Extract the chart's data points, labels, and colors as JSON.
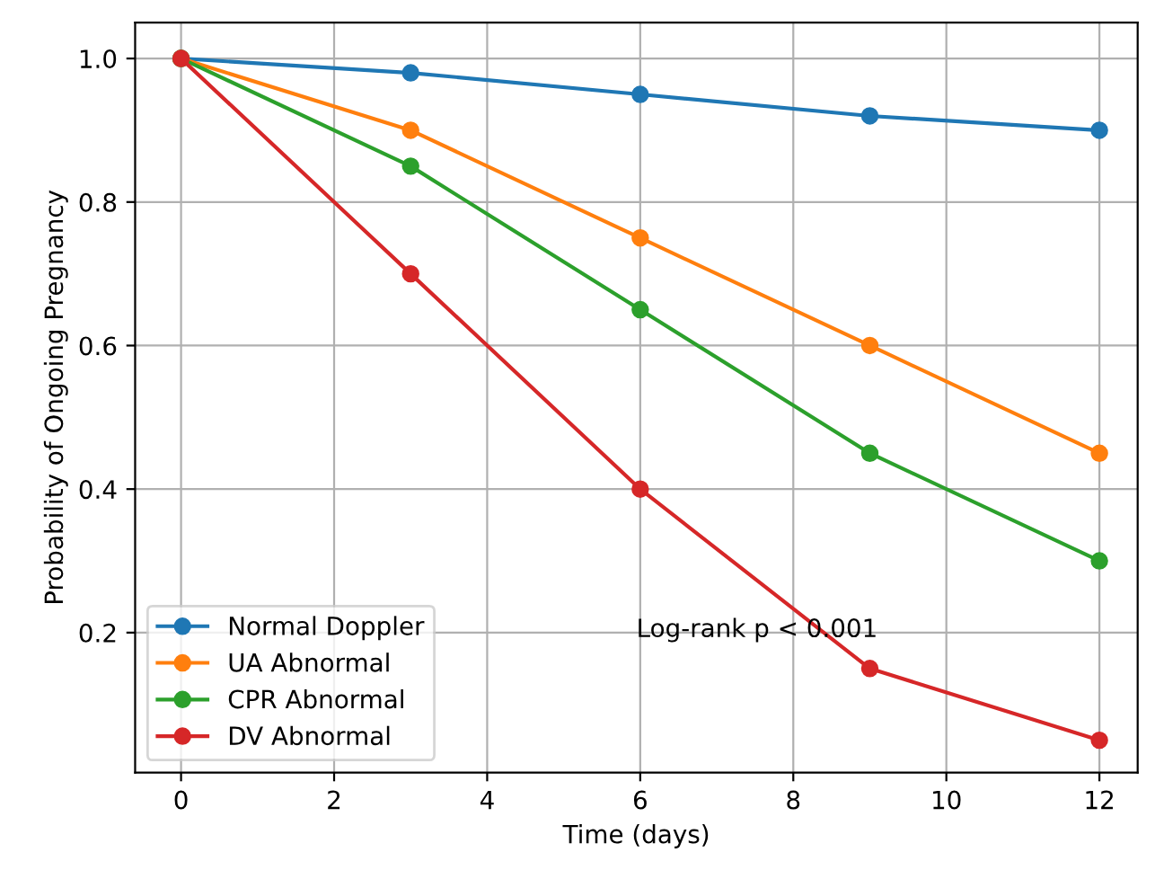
{
  "chart_data": {
    "type": "line",
    "xlabel": "Time (days)",
    "ylabel": "Probability of Ongoing Pregnancy",
    "x": [
      0,
      3,
      6,
      9,
      12
    ],
    "series": [
      {
        "name": "Normal Doppler",
        "color": "#1f77b4",
        "values": [
          1.0,
          0.98,
          0.95,
          0.92,
          0.9
        ]
      },
      {
        "name": "UA Abnormal",
        "color": "#ff7f0e",
        "values": [
          1.0,
          0.9,
          0.75,
          0.6,
          0.45
        ]
      },
      {
        "name": "CPR Abnormal",
        "color": "#2ca02c",
        "values": [
          1.0,
          0.85,
          0.65,
          0.45,
          0.3
        ]
      },
      {
        "name": "DV Abnormal",
        "color": "#d62728",
        "values": [
          1.0,
          0.7,
          0.4,
          0.15,
          0.05
        ]
      }
    ],
    "xlim": [
      -0.6,
      12.5
    ],
    "ylim": [
      0.005,
      1.05
    ],
    "xticks": [
      0,
      2,
      4,
      6,
      8,
      10,
      12
    ],
    "yticks": [
      0.2,
      0.4,
      0.6,
      0.8,
      {
        "value": 1,
        "label": "1.0"
      }
    ],
    "annotations": [
      "Log-rank p < 0.001"
    ],
    "grid": true,
    "legend": "bottom left",
    "marker": "circle",
    "line_style": "solid"
  }
}
